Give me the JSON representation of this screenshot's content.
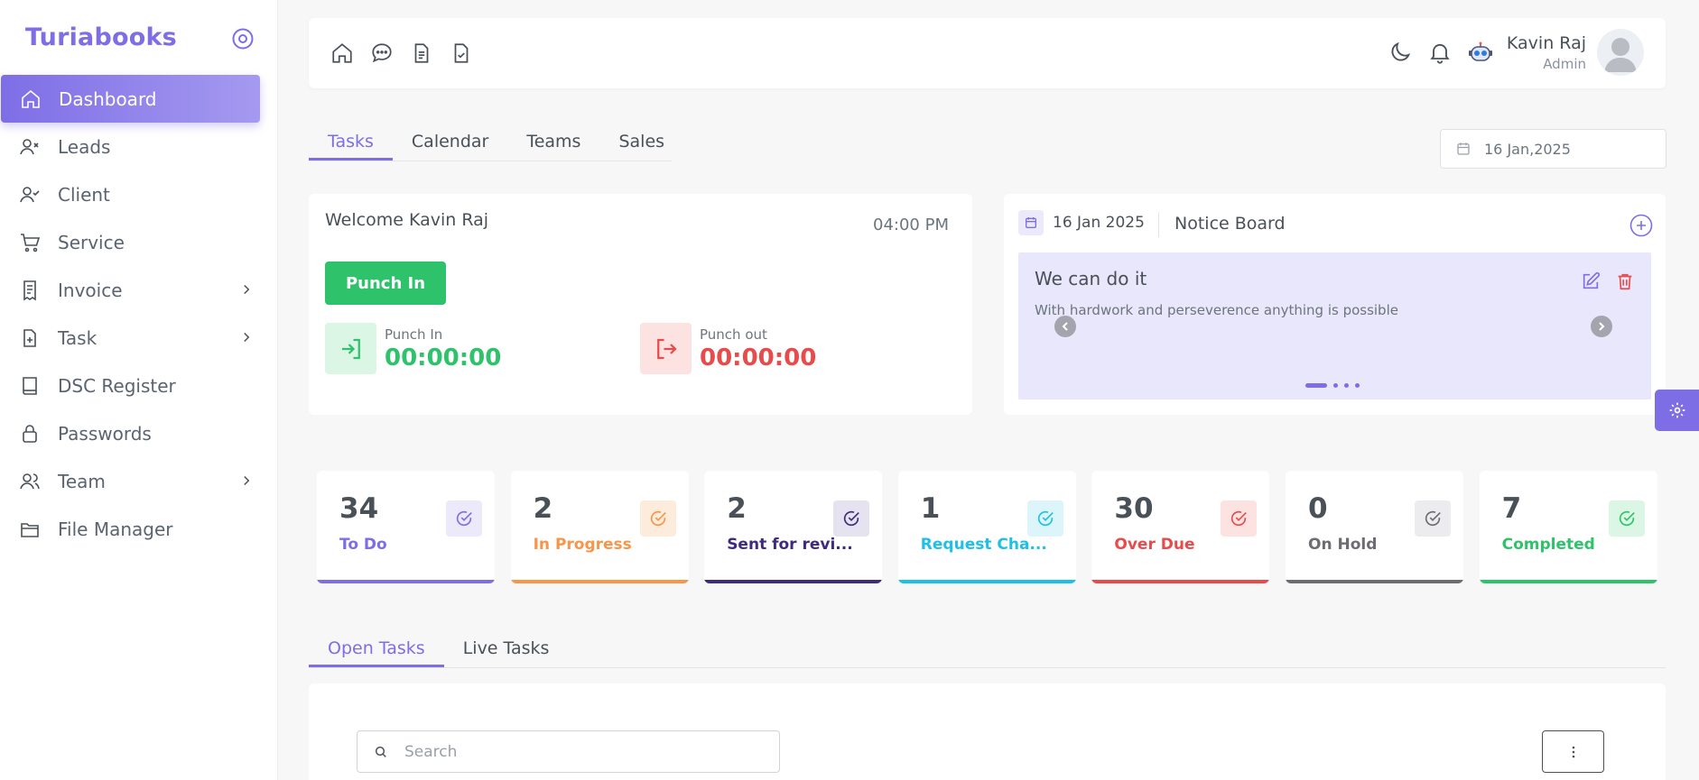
{
  "brand": "Turiabooks",
  "sidebar": {
    "items": [
      {
        "label": "Dashboard",
        "icon": "home-icon",
        "active": true,
        "chevron": false
      },
      {
        "label": "Leads",
        "icon": "user-x-icon",
        "chevron": false
      },
      {
        "label": "Client",
        "icon": "user-check-icon",
        "chevron": false
      },
      {
        "label": "Service",
        "icon": "cart-icon",
        "chevron": false
      },
      {
        "label": "Invoice",
        "icon": "receipt-icon",
        "chevron": true
      },
      {
        "label": "Task",
        "icon": "file-plus-icon",
        "chevron": true
      },
      {
        "label": "DSC Register",
        "icon": "book-icon",
        "chevron": false
      },
      {
        "label": "Passwords",
        "icon": "lock-icon",
        "chevron": false
      },
      {
        "label": "Team",
        "icon": "users-icon",
        "chevron": true
      },
      {
        "label": "File Manager",
        "icon": "folder-icon",
        "chevron": false
      }
    ]
  },
  "header": {
    "user_name": "Kavin Raj",
    "user_role": "Admin"
  },
  "main_tabs": {
    "items": [
      "Tasks",
      "Calendar",
      "Teams",
      "Sales"
    ],
    "active": "Tasks"
  },
  "date_filter": "16 Jan,2025",
  "welcome": {
    "title": "Welcome Kavin Raj",
    "time": "04:00 PM",
    "button": "Punch In",
    "punch_in_label": "Punch In",
    "punch_in_value": "00:00:00",
    "punch_out_label": "Punch out",
    "punch_out_value": "00:00:00"
  },
  "notice": {
    "date": "16 Jan 2025",
    "title": "Notice Board",
    "slide_title": "We can do it",
    "slide_text": "With hardwork and perseverence anything is possible"
  },
  "stats": [
    {
      "value": "34",
      "label": "To Do",
      "color": "#7d6ee6",
      "bg": "#ece9fb"
    },
    {
      "value": "2",
      "label": "In Progress",
      "color": "#f7954a",
      "bg": "#fdebdc"
    },
    {
      "value": "2",
      "label": "Sent for revi...",
      "color": "#3f2a7d",
      "bg": "#e6e3f0"
    },
    {
      "value": "1",
      "label": "Request Cha...",
      "color": "#1ec0e6",
      "bg": "#dbf5fb"
    },
    {
      "value": "30",
      "label": "Over Due",
      "color": "#e84b4b",
      "bg": "#fde2e2"
    },
    {
      "value": "0",
      "label": "On Hold",
      "color": "#6c6c72",
      "bg": "#ececee"
    },
    {
      "value": "7",
      "label": "Completed",
      "color": "#2ec36a",
      "bg": "#dcf6e6"
    }
  ],
  "task_tabs": {
    "items": [
      "Open Tasks",
      "Live Tasks"
    ],
    "active": "Open Tasks"
  },
  "search": {
    "placeholder": "Search"
  },
  "colors": {
    "accent": "#7d6ee6",
    "success": "#2ec36a",
    "danger": "#e84b4b"
  }
}
